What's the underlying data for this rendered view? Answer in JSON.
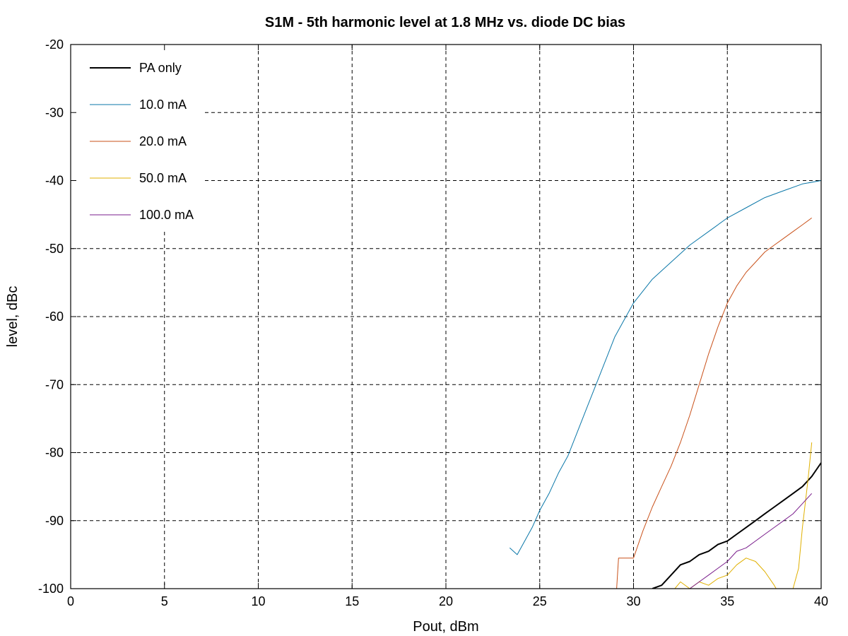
{
  "chart_data": {
    "type": "line",
    "title": "S1M - 5th harmonic level at 1.8 MHz vs. diode DC bias",
    "xlabel": "Pout, dBm",
    "ylabel": "level, dBc",
    "xlim": [
      0,
      40
    ],
    "ylim": [
      -100,
      -20
    ],
    "xticks": [
      "0",
      "5",
      "10",
      "15",
      "20",
      "25",
      "30",
      "35",
      "40"
    ],
    "yticks": [
      "-20",
      "-30",
      "-40",
      "-50",
      "-60",
      "-70",
      "-80",
      "-90",
      "-100"
    ],
    "grid": true,
    "legend_position": "top-left",
    "series": [
      {
        "name": "PA only",
        "color": "#000000",
        "x": [
          31.0,
          31.5,
          32.0,
          32.5,
          33.0,
          33.5,
          34.0,
          34.5,
          35.0,
          35.5,
          36.0,
          36.5,
          37.0,
          37.5,
          38.0,
          38.5,
          39.0,
          39.5,
          40.0
        ],
        "y": [
          -100,
          -99.5,
          -98,
          -96.5,
          -96,
          -95,
          -94.5,
          -93.5,
          -93,
          -92,
          -91,
          -90,
          -89,
          -88,
          -87,
          -86,
          -85,
          -83.5,
          -81.5
        ]
      },
      {
        "name": "10.0 mA",
        "color": "#0a77a8",
        "x": [
          23.4,
          23.8,
          24.2,
          24.6,
          25.0,
          25.5,
          26.0,
          26.5,
          27.0,
          27.5,
          28.0,
          28.5,
          29.0,
          29.5,
          30.0,
          31.0,
          32.0,
          33.0,
          34.0,
          35.0,
          36.0,
          37.0,
          38.0,
          39.0,
          40.0
        ],
        "y": [
          -94,
          -95,
          -93,
          -91,
          -88.5,
          -86,
          -83,
          -80.5,
          -77,
          -73.5,
          -70,
          -66.5,
          -63,
          -60.5,
          -58,
          -54.5,
          -52,
          -49.5,
          -47.5,
          -45.5,
          -44,
          -42.5,
          -41.5,
          -40.5,
          -40
        ]
      },
      {
        "name": "20.0 mA",
        "color": "#c9511a",
        "x": [
          29.1,
          29.2,
          29.5,
          30.0,
          30.5,
          31.0,
          31.5,
          32.0,
          32.5,
          33.0,
          33.5,
          34.0,
          34.5,
          35.0,
          35.5,
          36.0,
          36.5,
          37.0,
          37.5,
          38.0,
          38.5,
          39.0,
          39.5
        ],
        "y": [
          -100,
          -95.5,
          -95.5,
          -95.5,
          -91.5,
          -88,
          -85,
          -82,
          -78.5,
          -74.5,
          -70,
          -65.5,
          -61.5,
          -58,
          -55.5,
          -53.5,
          -52,
          -50.5,
          -49.5,
          -48.5,
          -47.5,
          -46.5,
          -45.5
        ]
      },
      {
        "name": "50.0 mA",
        "color": "#e0b000",
        "x": [
          32.2,
          32.5,
          33.0,
          33.5,
          34.0,
          34.5,
          35.0,
          35.5,
          36.0,
          36.5,
          37.0,
          37.5,
          37.6,
          38.5,
          38.8,
          39.0,
          39.3,
          39.5
        ],
        "y": [
          -100,
          -99,
          -100,
          -99,
          -99.5,
          -98.5,
          -98,
          -96.5,
          -95.5,
          -96,
          -97.5,
          -99.5,
          -100,
          -100,
          -97,
          -91,
          -84,
          -78.5
        ]
      },
      {
        "name": "100.0 mA",
        "color": "#7a1e8c",
        "x": [
          31.7,
          32.0,
          32.5,
          33.0,
          33.5,
          34.0,
          34.5,
          35.0,
          35.5,
          36.0,
          36.5,
          37.0,
          37.5,
          38.0,
          38.5,
          39.0,
          39.5
        ],
        "y": [
          -100,
          -100,
          -100,
          -100,
          -99,
          -98,
          -97,
          -96,
          -94.5,
          -94,
          -93,
          -92,
          -91,
          -90,
          -89,
          -87.5,
          -86
        ]
      }
    ]
  }
}
